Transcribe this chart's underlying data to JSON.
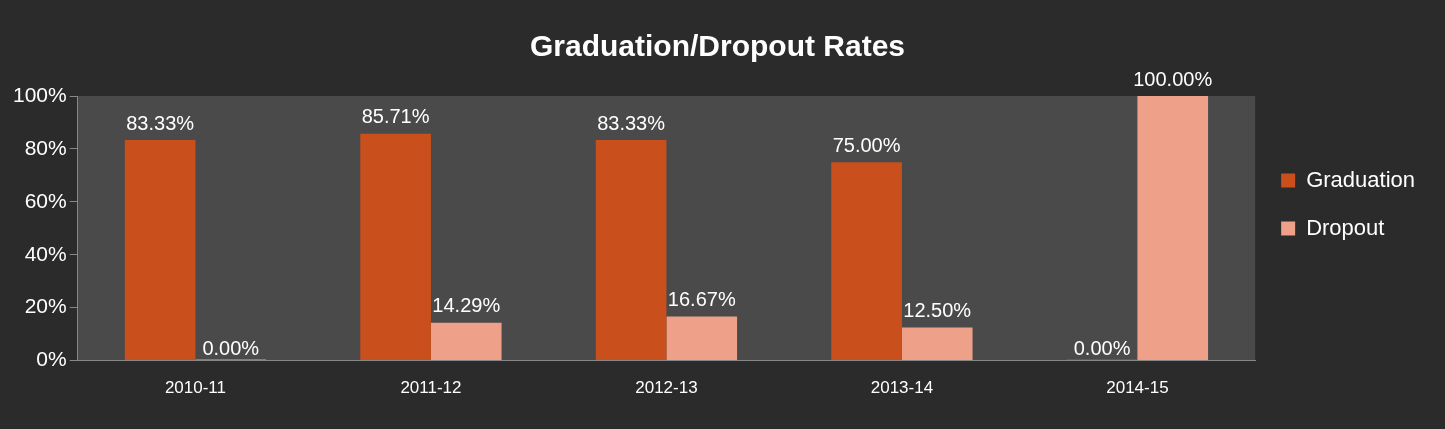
{
  "chart_data": {
    "type": "bar",
    "title": "Graduation/Dropout Rates",
    "categories": [
      "2010-11",
      "2011-12",
      "2012-13",
      "2013-14",
      "2014-15"
    ],
    "series": [
      {
        "name": "Graduation",
        "color": "#c9501c",
        "values": [
          83.33,
          85.71,
          83.33,
          75.0,
          0.0
        ],
        "value_labels": [
          "83.33%",
          "85.71%",
          "83.33%",
          "75.00%",
          "0.00%"
        ]
      },
      {
        "name": "Dropout",
        "color": "#eea088",
        "values": [
          0.0,
          14.29,
          16.67,
          12.5,
          100.0
        ],
        "value_labels": [
          "0.00%",
          "14.29%",
          "16.67%",
          "12.50%",
          "100.00%"
        ]
      }
    ],
    "ylim": [
      0,
      100
    ],
    "yticks": [
      {
        "value": 0,
        "label": "0%"
      },
      {
        "value": 20,
        "label": "20%"
      },
      {
        "value": 40,
        "label": "40%"
      },
      {
        "value": 60,
        "label": "60%"
      },
      {
        "value": 80,
        "label": "80%"
      },
      {
        "value": 100,
        "label": "100%"
      }
    ],
    "grid": false,
    "legend": "right"
  }
}
